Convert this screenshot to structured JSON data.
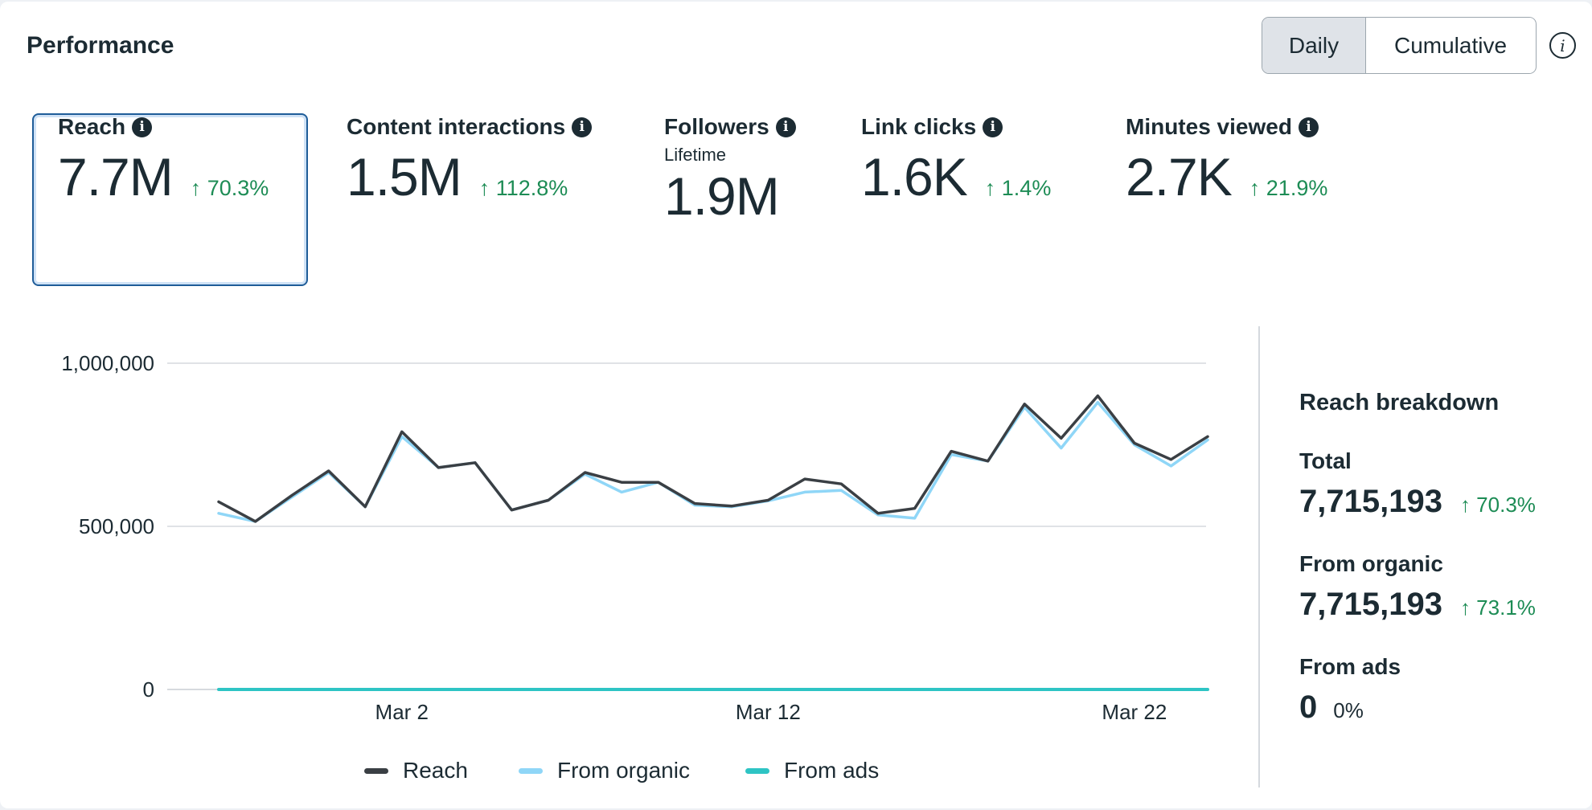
{
  "header": {
    "title": "Performance",
    "daily_label": "Daily",
    "cumulative_label": "Cumulative",
    "info_glyph": "i"
  },
  "metrics": [
    {
      "label": "Reach",
      "value": "7.7M",
      "change": "↑ 70.3%"
    },
    {
      "label": "Content interactions",
      "value": "1.5M",
      "change": "↑ 112.8%"
    },
    {
      "label": "Followers",
      "sublabel": "Lifetime",
      "value": "1.9M"
    },
    {
      "label": "Link clicks",
      "value": "1.6K",
      "change": "↑ 1.4%"
    },
    {
      "label": "Minutes viewed",
      "value": "2.7K",
      "change": "↑ 21.9%"
    }
  ],
  "metric_info_glyph": "i",
  "breakdown": {
    "title": "Reach breakdown",
    "total_label": "Total",
    "total_value": "7,715,193",
    "total_change": "↑ 70.3%",
    "organic_label": "From organic",
    "organic_value": "7,715,193",
    "organic_change": "↑ 73.1%",
    "ads_label": "From ads",
    "ads_value": "0",
    "ads_pct": "0%"
  },
  "colors": {
    "reach": "#3a3f44",
    "organic": "#8fd6f7",
    "ads": "#2ec4c4",
    "positive": "#1d8c55"
  },
  "chart_data": {
    "type": "line",
    "title": "",
    "xlabel": "",
    "ylabel": "",
    "x": [
      1,
      2,
      3,
      4,
      5,
      6,
      7,
      8,
      9,
      10,
      11,
      12,
      13,
      14,
      15,
      16,
      17,
      18,
      19,
      20,
      21,
      22,
      23,
      24,
      25,
      26,
      27,
      28
    ],
    "x_ticks": [
      {
        "x": 6,
        "label": "Mar 2"
      },
      {
        "x": 16,
        "label": "Mar 12"
      },
      {
        "x": 26,
        "label": "Mar 22"
      }
    ],
    "y_ticks": [
      {
        "value": 0,
        "label": "0"
      },
      {
        "value": 500000,
        "label": "500,000"
      },
      {
        "value": 1000000,
        "label": "1,000,000"
      }
    ],
    "ylim": [
      0,
      1000000
    ],
    "grid": true,
    "series": [
      {
        "name": "Reach",
        "color_key": "reach",
        "values": [
          575000,
          515000,
          595000,
          670000,
          560000,
          790000,
          680000,
          695000,
          550000,
          580000,
          665000,
          635000,
          635000,
          570000,
          562000,
          580000,
          645000,
          630000,
          540000,
          555000,
          730000,
          700000,
          875000,
          770000,
          900000,
          755000,
          705000,
          775000
        ]
      },
      {
        "name": "From organic",
        "color_key": "organic",
        "values": [
          540000,
          515000,
          590000,
          665000,
          560000,
          775000,
          680000,
          695000,
          550000,
          580000,
          660000,
          605000,
          635000,
          565000,
          560000,
          578000,
          605000,
          610000,
          535000,
          525000,
          720000,
          700000,
          865000,
          740000,
          880000,
          750000,
          685000,
          765000
        ]
      },
      {
        "name": "From ads",
        "color_key": "ads",
        "values": [
          0,
          0,
          0,
          0,
          0,
          0,
          0,
          0,
          0,
          0,
          0,
          0,
          0,
          0,
          0,
          0,
          0,
          0,
          0,
          0,
          0,
          0,
          0,
          0,
          0,
          0,
          0,
          0
        ]
      }
    ]
  }
}
